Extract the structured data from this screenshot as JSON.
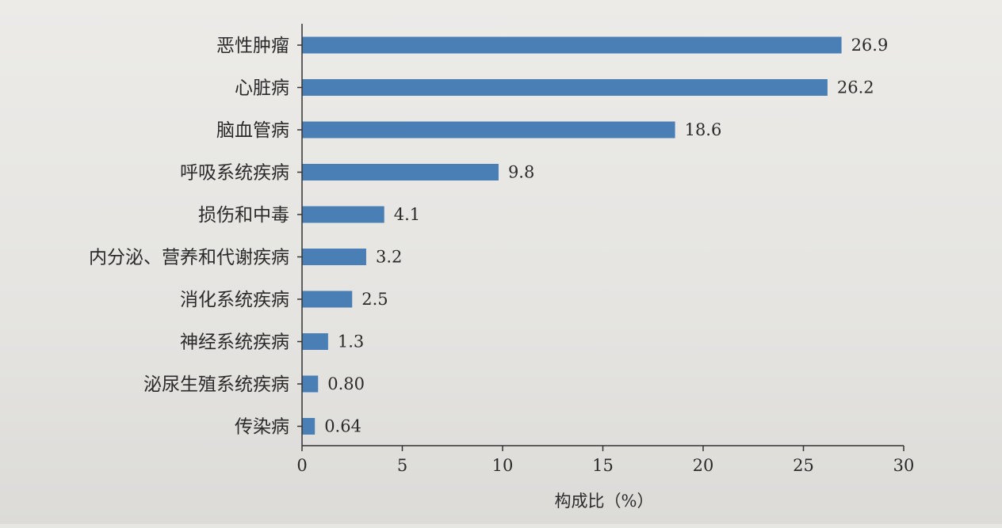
{
  "chart_data": {
    "type": "bar",
    "orientation": "horizontal",
    "categories": [
      "恶性肿瘤",
      "心脏病",
      "脑血管病",
      "呼吸系统疾病",
      "损伤和中毒",
      "内分泌、营养和代谢疾病",
      "消化系统疾病",
      "神经系统疾病",
      "泌尿生殖系统疾病",
      "传染病"
    ],
    "values": [
      26.9,
      26.2,
      18.6,
      9.8,
      4.1,
      3.2,
      2.5,
      1.3,
      0.8,
      0.64
    ],
    "value_labels": [
      "26.9",
      "26.2",
      "18.6",
      "9.8",
      "4.1",
      "3.2",
      "2.5",
      "1.3",
      "0.80",
      "0.64"
    ],
    "xlabel": "构成比（%）",
    "ylabel": "",
    "xlim": [
      0,
      30
    ],
    "xticks": [
      0,
      5,
      10,
      15,
      20,
      25,
      30
    ],
    "grid": false,
    "bar_color": "#4a7fb5"
  }
}
